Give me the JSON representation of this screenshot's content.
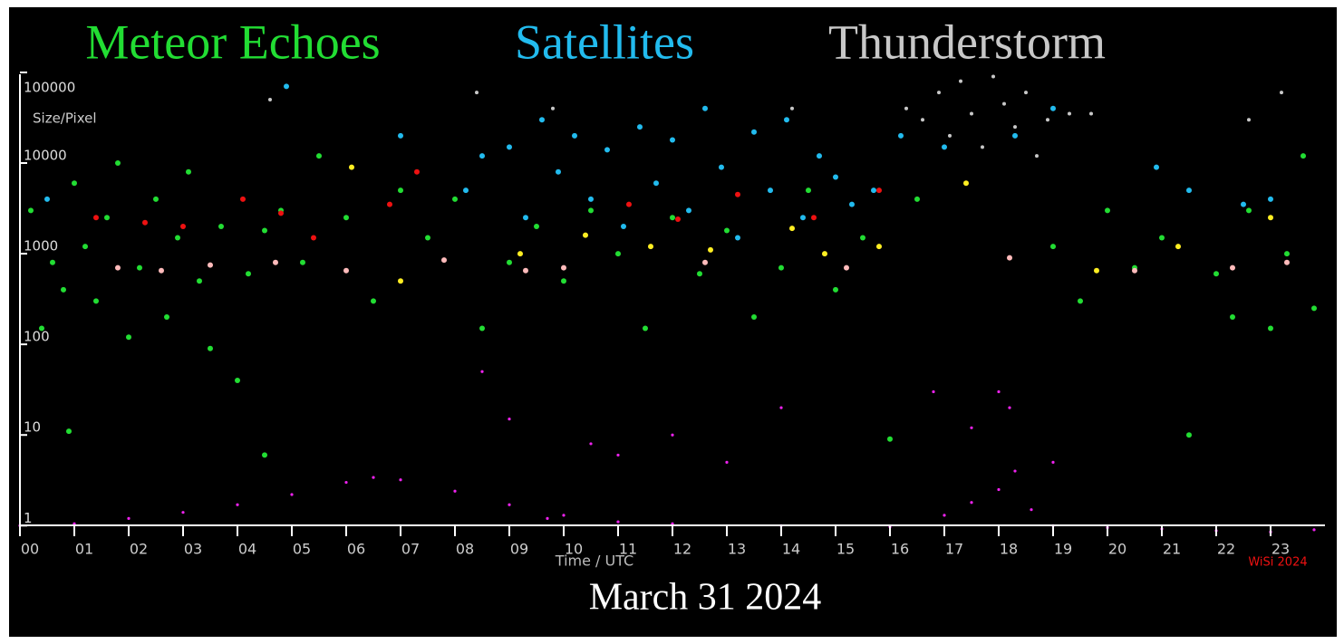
{
  "chart_data": {
    "type": "scatter",
    "date": "March 31 2024",
    "xlabel": "Time / UTC",
    "ylabel": "Size/Pixel",
    "credit": "WiSi 2024",
    "xlim": [
      0,
      24
    ],
    "ylim": [
      0.8,
      120000
    ],
    "log_y": true,
    "xticks": [
      {
        "value": 0,
        "label": "00"
      },
      {
        "value": 1,
        "label": "01"
      },
      {
        "value": 2,
        "label": "02"
      },
      {
        "value": 3,
        "label": "03"
      },
      {
        "value": 4,
        "label": "04"
      },
      {
        "value": 5,
        "label": "05"
      },
      {
        "value": 6,
        "label": "06"
      },
      {
        "value": 7,
        "label": "07"
      },
      {
        "value": 8,
        "label": "08"
      },
      {
        "value": 9,
        "label": "09"
      },
      10,
      11,
      12,
      13,
      14,
      15,
      16,
      17,
      18,
      19,
      20,
      21,
      22,
      23
    ],
    "yticks": [
      1,
      10,
      100,
      1000,
      10000,
      100000
    ],
    "series": [
      {
        "name": "Meteor Echoes",
        "color": "#22dd33",
        "x": [
          0.2,
          0.4,
          0.6,
          0.8,
          1.0,
          1.2,
          1.4,
          1.6,
          1.8,
          2.0,
          2.2,
          2.5,
          2.7,
          2.9,
          3.1,
          3.3,
          3.5,
          3.7,
          4.0,
          4.2,
          4.5,
          4.8,
          5.2,
          5.5,
          6.0,
          6.5,
          7.0,
          7.5,
          8.0,
          8.5,
          9.0,
          9.5,
          10.0,
          10.5,
          11.0,
          11.5,
          12.0,
          12.5,
          13.0,
          13.5,
          14.0,
          14.5,
          15.0,
          15.5,
          16.0,
          16.5,
          19.0,
          19.5,
          20.0,
          20.5,
          21.0,
          21.5,
          22.0,
          22.3,
          22.6,
          23.0,
          23.3,
          23.6,
          23.8,
          0.9,
          4.5
        ],
        "values": [
          3000,
          150,
          800,
          400,
          6000,
          1200,
          300,
          2500,
          10000,
          120,
          700,
          4000,
          200,
          1500,
          8000,
          500,
          90,
          2000,
          40,
          600,
          1800,
          3000,
          800,
          12000,
          2500,
          300,
          5000,
          1500,
          4000,
          150,
          800,
          2000,
          500,
          3000,
          1000,
          150,
          2500,
          600,
          1800,
          200,
          700,
          5000,
          400,
          1500,
          9,
          4000,
          1200,
          300,
          3000,
          700,
          1500,
          10,
          600,
          200,
          3000,
          150,
          1000,
          12000,
          250,
          11,
          6
        ]
      },
      {
        "name": "Satellites",
        "color": "#22bbee",
        "x": [
          0.5,
          4.9,
          7.0,
          8.2,
          8.5,
          9.0,
          9.3,
          9.6,
          9.9,
          10.2,
          10.5,
          10.8,
          11.1,
          11.4,
          11.7,
          12.0,
          12.3,
          12.6,
          12.9,
          13.2,
          13.5,
          13.8,
          14.1,
          14.4,
          14.7,
          15.0,
          15.3,
          15.7,
          16.2,
          17.0,
          18.3,
          19.0,
          20.9,
          21.5,
          22.5,
          23.0
        ],
        "values": [
          4000,
          70000,
          20000,
          5000,
          12000,
          15000,
          2500,
          30000,
          8000,
          20000,
          4000,
          14000,
          2000,
          25000,
          6000,
          18000,
          3000,
          40000,
          9000,
          1500,
          22000,
          5000,
          30000,
          2500,
          12000,
          7000,
          3500,
          5000,
          20000,
          15000,
          20000,
          40000,
          9000,
          5000,
          3500,
          4000
        ]
      },
      {
        "name": "Thunderstorm",
        "color": "#c8c8c8",
        "x": [
          4.6,
          8.4,
          9.8,
          14.2,
          16.3,
          16.6,
          16.9,
          17.1,
          17.3,
          17.5,
          17.7,
          17.9,
          18.1,
          18.3,
          18.5,
          18.7,
          18.9,
          19.3,
          19.7,
          22.6,
          23.2
        ],
        "values": [
          50000,
          60000,
          40000,
          40000,
          40000,
          30000,
          60000,
          20000,
          80000,
          35000,
          15000,
          90000,
          45000,
          25000,
          60000,
          12000,
          30000,
          35000,
          35000,
          30000,
          60000
        ]
      },
      {
        "color": "#ee1111",
        "x": [
          1.4,
          2.3,
          3.0,
          4.1,
          4.8,
          5.4,
          6.8,
          7.3,
          11.2,
          12.1,
          13.2,
          14.6,
          15.8
        ],
        "values": [
          2500,
          2200,
          2000,
          4000,
          2800,
          1500,
          3500,
          8000,
          3500,
          2400,
          4500,
          2500,
          5000
        ]
      },
      {
        "color": "#ffbbbb",
        "x": [
          1.8,
          2.6,
          3.5,
          4.7,
          6.0,
          7.8,
          9.3,
          10.0,
          12.6,
          15.2,
          18.2,
          20.5,
          22.3,
          23.3
        ],
        "values": [
          700,
          650,
          750,
          800,
          650,
          850,
          650,
          700,
          800,
          700,
          900,
          650,
          700,
          800
        ]
      },
      {
        "color": "#ffee22",
        "x": [
          6.1,
          7.0,
          9.2,
          10.4,
          11.6,
          12.7,
          14.2,
          14.8,
          15.8,
          17.4,
          19.8,
          21.3,
          23.0
        ],
        "values": [
          9000,
          500,
          1000,
          1600,
          1200,
          1100,
          1900,
          1000,
          1200,
          6000,
          650,
          1200,
          2500
        ]
      },
      {
        "color": "#ee22ee",
        "x": [
          0,
          1,
          2,
          3,
          4,
          5,
          6,
          6.5,
          7,
          8,
          9,
          9.7,
          10,
          11,
          12,
          14,
          16,
          17,
          17.5,
          18,
          18.3,
          18.6,
          19,
          20,
          21,
          22,
          23,
          23.8,
          9,
          10.5,
          12,
          13,
          14,
          16.8,
          17.5,
          18,
          18.2,
          8.5,
          11,
          19
        ],
        "values": [
          1.0,
          1.05,
          1.2,
          1.4,
          1.7,
          2.2,
          3.0,
          3.4,
          3.2,
          2.4,
          1.7,
          1.2,
          1.3,
          1.1,
          1.05,
          1.0,
          0.97,
          1.3,
          1.8,
          2.5,
          4,
          1.5,
          1.0,
          0.95,
          0.92,
          0.88,
          0.85,
          0.9,
          15,
          8,
          10,
          5,
          20,
          30,
          12,
          30,
          20,
          50,
          6,
          5
        ]
      }
    ]
  }
}
